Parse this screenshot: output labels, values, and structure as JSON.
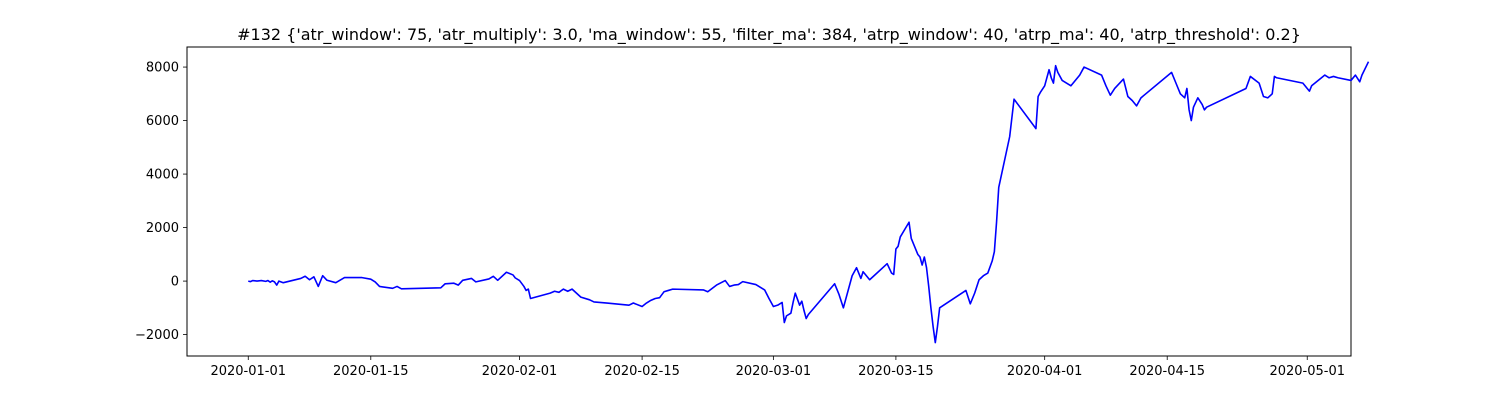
{
  "chart_data": {
    "type": "line",
    "title": "#132 {'atr_window': 75, 'atr_multiply': 3.0, 'ma_window': 55, 'filter_ma': 384, 'atrp_window': 40, 'atrp_ma': 40, 'atrp_threshold': 0.2}",
    "xlabel": "",
    "ylabel": "",
    "xlim": [
      "2019-12-25",
      "2020-05-06"
    ],
    "ylim": [
      -2800,
      8750
    ],
    "grid": false,
    "line_color": "#0000ff",
    "x_ticks": [
      {
        "date": "2020-01-01",
        "label": "2020-01-01"
      },
      {
        "date": "2020-01-15",
        "label": "2020-01-15"
      },
      {
        "date": "2020-02-01",
        "label": "2020-02-01"
      },
      {
        "date": "2020-02-15",
        "label": "2020-02-15"
      },
      {
        "date": "2020-03-01",
        "label": "2020-03-01"
      },
      {
        "date": "2020-03-15",
        "label": "2020-03-15"
      },
      {
        "date": "2020-04-01",
        "label": "2020-04-01"
      },
      {
        "date": "2020-04-15",
        "label": "2020-04-15"
      },
      {
        "date": "2020-05-01",
        "label": "2020-05-01"
      }
    ],
    "y_ticks": [
      {
        "value": -2000,
        "label": "−2000"
      },
      {
        "value": 0,
        "label": "0"
      },
      {
        "value": 2000,
        "label": "2000"
      },
      {
        "value": 4000,
        "label": "4000"
      },
      {
        "value": 6000,
        "label": "6000"
      },
      {
        "value": 8000,
        "label": "8000"
      }
    ],
    "series": [
      {
        "points": [
          [
            "2020-01-01 00:00",
            0
          ],
          [
            "2020-01-01 06:00",
            -20
          ],
          [
            "2020-01-01 12:00",
            20
          ],
          [
            "2020-01-02 00:00",
            0
          ],
          [
            "2020-01-02 12:00",
            20
          ],
          [
            "2020-01-03 00:00",
            -10
          ],
          [
            "2020-01-03 06:00",
            20
          ],
          [
            "2020-01-03 12:00",
            -40
          ],
          [
            "2020-01-03 18:00",
            10
          ],
          [
            "2020-01-04 00:00",
            -30
          ],
          [
            "2020-01-04 06:00",
            -150
          ],
          [
            "2020-01-04 12:00",
            0
          ],
          [
            "2020-01-05 00:00",
            -60
          ],
          [
            "2020-01-07 00:00",
            100
          ],
          [
            "2020-01-07 12:00",
            180
          ],
          [
            "2020-01-08 00:00",
            50
          ],
          [
            "2020-01-08 12:00",
            160
          ],
          [
            "2020-01-09 00:00",
            -200
          ],
          [
            "2020-01-09 12:00",
            200
          ],
          [
            "2020-01-10 00:00",
            30
          ],
          [
            "2020-01-11 00:00",
            -60
          ],
          [
            "2020-01-12 00:00",
            130
          ],
          [
            "2020-01-14 00:00",
            130
          ],
          [
            "2020-01-15 00:00",
            70
          ],
          [
            "2020-01-15 12:00",
            -30
          ],
          [
            "2020-01-16 00:00",
            -200
          ],
          [
            "2020-01-17 12:00",
            -270
          ],
          [
            "2020-01-18 00:00",
            -200
          ],
          [
            "2020-01-18 12:00",
            -290
          ],
          [
            "2020-01-23 00:00",
            -250
          ],
          [
            "2020-01-23 12:00",
            -100
          ],
          [
            "2020-01-24 12:00",
            -80
          ],
          [
            "2020-01-25 00:00",
            -150
          ],
          [
            "2020-01-25 12:00",
            30
          ],
          [
            "2020-01-26 12:00",
            100
          ],
          [
            "2020-01-27 00:00",
            -30
          ],
          [
            "2020-01-28 12:00",
            80
          ],
          [
            "2020-01-29 00:00",
            180
          ],
          [
            "2020-01-29 12:00",
            30
          ],
          [
            "2020-01-30 12:00",
            330
          ],
          [
            "2020-01-31 06:00",
            230
          ],
          [
            "2020-01-31 12:00",
            120
          ],
          [
            "2020-02-01 00:00",
            20
          ],
          [
            "2020-02-01 12:00",
            -200
          ],
          [
            "2020-02-01 18:00",
            -350
          ],
          [
            "2020-02-02 00:00",
            -300
          ],
          [
            "2020-02-02 06:00",
            -650
          ],
          [
            "2020-02-04 12:00",
            -450
          ],
          [
            "2020-02-05 00:00",
            -380
          ],
          [
            "2020-02-05 12:00",
            -420
          ],
          [
            "2020-02-06 00:00",
            -300
          ],
          [
            "2020-02-06 12:00",
            -380
          ],
          [
            "2020-02-07 00:00",
            -300
          ],
          [
            "2020-02-07 12:00",
            -450
          ],
          [
            "2020-02-08 00:00",
            -600
          ],
          [
            "2020-02-09 00:00",
            -700
          ],
          [
            "2020-02-09 12:00",
            -780
          ],
          [
            "2020-02-11 00:00",
            -820
          ],
          [
            "2020-02-13 12:00",
            -900
          ],
          [
            "2020-02-14 00:00",
            -820
          ],
          [
            "2020-02-15 00:00",
            -950
          ],
          [
            "2020-02-15 12:00",
            -820
          ],
          [
            "2020-02-16 00:00",
            -720
          ],
          [
            "2020-02-16 12:00",
            -650
          ],
          [
            "2020-02-17 00:00",
            -620
          ],
          [
            "2020-02-17 12:00",
            -400
          ],
          [
            "2020-02-18 00:00",
            -350
          ],
          [
            "2020-02-18 12:00",
            -300
          ],
          [
            "2020-02-22 00:00",
            -330
          ],
          [
            "2020-02-22 12:00",
            -400
          ],
          [
            "2020-02-23 12:00",
            -150
          ],
          [
            "2020-02-24 12:00",
            20
          ],
          [
            "2020-02-25 00:00",
            -200
          ],
          [
            "2020-02-25 12:00",
            -150
          ],
          [
            "2020-02-26 00:00",
            -130
          ],
          [
            "2020-02-26 12:00",
            -20
          ],
          [
            "2020-02-28 00:00",
            -130
          ],
          [
            "2020-02-29 00:00",
            -330
          ],
          [
            "2020-02-29 12:00",
            -650
          ],
          [
            "2020-03-01 00:00",
            -950
          ],
          [
            "2020-03-01 12:00",
            -900
          ],
          [
            "2020-03-02 00:00",
            -800
          ],
          [
            "2020-03-02 06:00",
            -1550
          ],
          [
            "2020-03-02 12:00",
            -1300
          ],
          [
            "2020-03-03 00:00",
            -1200
          ],
          [
            "2020-03-03 06:00",
            -800
          ],
          [
            "2020-03-03 12:00",
            -450
          ],
          [
            "2020-03-04 00:00",
            -900
          ],
          [
            "2020-03-04 06:00",
            -750
          ],
          [
            "2020-03-04 12:00",
            -1100
          ],
          [
            "2020-03-04 18:00",
            -1400
          ],
          [
            "2020-03-05 00:00",
            -1250
          ],
          [
            "2020-03-08 00:00",
            -100
          ],
          [
            "2020-03-08 12:00",
            -500
          ],
          [
            "2020-03-09 00:00",
            -1000
          ],
          [
            "2020-03-10 00:00",
            200
          ],
          [
            "2020-03-10 12:00",
            500
          ],
          [
            "2020-03-11 00:00",
            100
          ],
          [
            "2020-03-11 06:00",
            350
          ],
          [
            "2020-03-11 12:00",
            250
          ],
          [
            "2020-03-12 00:00",
            50
          ],
          [
            "2020-03-12 12:00",
            200
          ],
          [
            "2020-03-14 00:00",
            650
          ],
          [
            "2020-03-14 12:00",
            300
          ],
          [
            "2020-03-14 18:00",
            250
          ],
          [
            "2020-03-15 00:00",
            1200
          ],
          [
            "2020-03-15 06:00",
            1300
          ],
          [
            "2020-03-15 12:00",
            1650
          ],
          [
            "2020-03-16 12:00",
            2200
          ],
          [
            "2020-03-16 18:00",
            1600
          ],
          [
            "2020-03-17 12:00",
            1000
          ],
          [
            "2020-03-17 18:00",
            900
          ],
          [
            "2020-03-18 00:00",
            600
          ],
          [
            "2020-03-18 06:00",
            900
          ],
          [
            "2020-03-18 12:00",
            500
          ],
          [
            "2020-03-18 18:00",
            -200
          ],
          [
            "2020-03-19 00:00",
            -1000
          ],
          [
            "2020-03-19 06:00",
            -1700
          ],
          [
            "2020-03-19 12:00",
            -2300
          ],
          [
            "2020-03-19 18:00",
            -1700
          ],
          [
            "2020-03-20 00:00",
            -1000
          ],
          [
            "2020-03-23 00:00",
            -350
          ],
          [
            "2020-03-23 06:00",
            -600
          ],
          [
            "2020-03-23 12:00",
            -850
          ],
          [
            "2020-03-24 00:00",
            -450
          ],
          [
            "2020-03-24 12:00",
            50
          ],
          [
            "2020-03-25 00:00",
            200
          ],
          [
            "2020-03-25 12:00",
            300
          ],
          [
            "2020-03-26 00:00",
            750
          ],
          [
            "2020-03-26 06:00",
            1100
          ],
          [
            "2020-03-26 12:00",
            2200
          ],
          [
            "2020-03-26 18:00",
            3500
          ],
          [
            "2020-03-28 00:00",
            5400
          ],
          [
            "2020-03-28 12:00",
            6800
          ],
          [
            "2020-03-31 00:00",
            5700
          ],
          [
            "2020-03-31 06:00",
            6900
          ],
          [
            "2020-03-31 12:00",
            7050
          ],
          [
            "2020-04-01 00:00",
            7300
          ],
          [
            "2020-04-01 12:00",
            7900
          ],
          [
            "2020-04-01 18:00",
            7600
          ],
          [
            "2020-04-02 00:00",
            7400
          ],
          [
            "2020-04-02 06:00",
            8050
          ],
          [
            "2020-04-02 12:00",
            7800
          ],
          [
            "2020-04-03 00:00",
            7500
          ],
          [
            "2020-04-04 00:00",
            7300
          ],
          [
            "2020-04-05 00:00",
            7700
          ],
          [
            "2020-04-05 12:00",
            8000
          ],
          [
            "2020-04-07 12:00",
            7700
          ],
          [
            "2020-04-08 00:00",
            7300
          ],
          [
            "2020-04-08 12:00",
            6950
          ],
          [
            "2020-04-09 00:00",
            7200
          ],
          [
            "2020-04-10 00:00",
            7550
          ],
          [
            "2020-04-10 12:00",
            6900
          ],
          [
            "2020-04-11 00:00",
            6750
          ],
          [
            "2020-04-11 12:00",
            6550
          ],
          [
            "2020-04-12 00:00",
            6850
          ],
          [
            "2020-04-15 12:00",
            7800
          ],
          [
            "2020-04-16 00:00",
            7400
          ],
          [
            "2020-04-16 12:00",
            7000
          ],
          [
            "2020-04-17 00:00",
            6850
          ],
          [
            "2020-04-17 06:00",
            7200
          ],
          [
            "2020-04-17 12:00",
            6400
          ],
          [
            "2020-04-17 18:00",
            6000
          ],
          [
            "2020-04-18 00:00",
            6500
          ],
          [
            "2020-04-18 12:00",
            6850
          ],
          [
            "2020-04-19 00:00",
            6600
          ],
          [
            "2020-04-19 06:00",
            6400
          ],
          [
            "2020-04-19 12:00",
            6500
          ],
          [
            "2020-04-24 00:00",
            7200
          ],
          [
            "2020-04-24 12:00",
            7650
          ],
          [
            "2020-04-25 12:00",
            7400
          ],
          [
            "2020-04-26 00:00",
            6900
          ],
          [
            "2020-04-26 12:00",
            6850
          ],
          [
            "2020-04-27 00:00",
            7000
          ],
          [
            "2020-04-27 06:00",
            7650
          ],
          [
            "2020-04-27 12:00",
            7600
          ],
          [
            "2020-04-30 12:00",
            7400
          ],
          [
            "2020-05-01 00:00",
            7200
          ],
          [
            "2020-05-01 06:00",
            7100
          ],
          [
            "2020-05-01 12:00",
            7300
          ],
          [
            "2020-05-03 00:00",
            7700
          ],
          [
            "2020-05-03 12:00",
            7600
          ],
          [
            "2020-05-04 00:00",
            7650
          ],
          [
            "2020-05-04 12:00",
            7600
          ],
          [
            "2020-05-06 00:00",
            7500
          ],
          [
            "2020-05-06 12:00",
            7700
          ],
          [
            "2020-05-07 00:00",
            7450
          ],
          [
            "2020-05-07 06:00",
            7700
          ],
          [
            "2020-05-08 00:00",
            8200
          ]
        ]
      }
    ]
  }
}
